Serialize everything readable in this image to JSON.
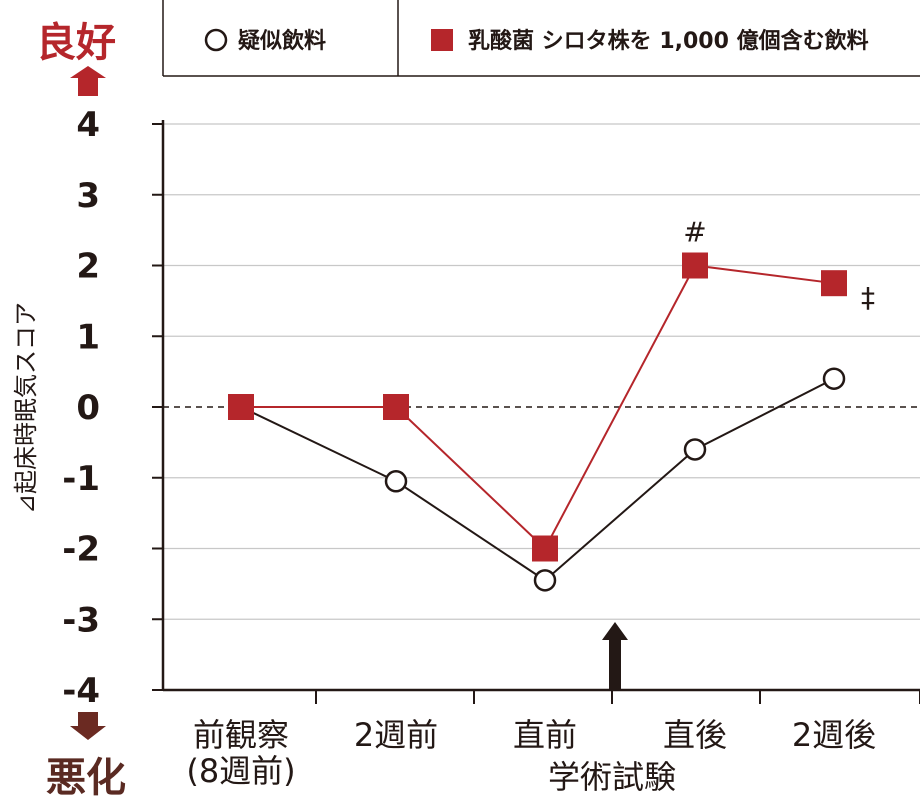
{
  "chart_data": {
    "type": "line",
    "ylabel": "⊿起床時眠気スコア",
    "xlabel": "学術試験",
    "ylim": [
      -4,
      4
    ],
    "yticks": [
      "4",
      "3",
      "2",
      "1",
      "0",
      "-1",
      "-2",
      "-3",
      "-4"
    ],
    "categories": [
      "前観察\n(8週前)",
      "2週前",
      "直前",
      "直後",
      "2週後"
    ],
    "series": [
      {
        "name": "疑似飲料",
        "values": [
          0,
          -1.05,
          -2.45,
          -0.6,
          0.4
        ],
        "marker": "circle",
        "color": "#231815"
      },
      {
        "name": "乳酸菌 シロタ株を 1,000 億個含む飲料",
        "values": [
          0,
          0,
          -2,
          2,
          1.75
        ],
        "marker": "square",
        "color": "#b5262b"
      }
    ],
    "annotations": [
      {
        "text": "#",
        "category_index": 3
      },
      {
        "text": "‡",
        "category_index": 4
      }
    ],
    "good_label": "良好",
    "bad_label": "悪化",
    "event_marker_label": "",
    "grid": true,
    "legend": "top"
  },
  "colors": {
    "accent": "#b5262b",
    "text": "#231815",
    "grid": "#c8c8c8",
    "bad_arrow": "#6b2a22"
  }
}
